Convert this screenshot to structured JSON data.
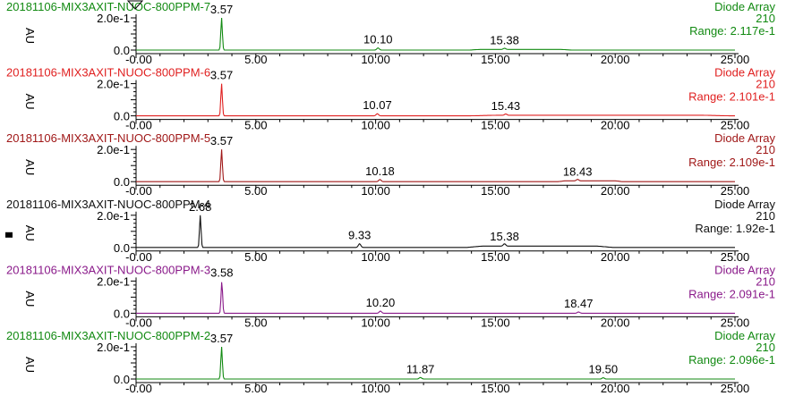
{
  "chart_data": [
    {
      "type": "line",
      "title": "20181106-MIX3AXIT-NUOC-800PPM-7",
      "detector": "Diode Array",
      "wavelength": "210",
      "range_text": "Range: 2.117e-1",
      "color": "#128a12",
      "ylabel": "AU",
      "ytick_labels": [
        "2.0e-1",
        "0.0"
      ],
      "xtick_labels": [
        "-0.00",
        "5.00",
        "10.00",
        "15.00",
        "20.00",
        "25.00"
      ],
      "xlim": [
        0,
        25
      ],
      "ylim": [
        0,
        0.2117
      ],
      "peaks": [
        {
          "x": 3.57,
          "y": 0.2117,
          "label": "3.57"
        },
        {
          "x": 10.1,
          "y": 0.014,
          "label": "10.10"
        },
        {
          "x": 15.38,
          "y": 0.008,
          "label": "15.38"
        }
      ],
      "baseline_humps": [
        [
          13.9,
          18.2,
          0.004
        ]
      ]
    },
    {
      "type": "line",
      "title": "20181106-MIX3AXIT-NUOC-800PPM-6",
      "detector": "Diode Array",
      "wavelength": "210",
      "range_text": "Range: 2.101e-1",
      "color": "#e02020",
      "ylabel": "AU",
      "ytick_labels": [
        "2.0e-1",
        "0.0"
      ],
      "xtick_labels": [
        "-0.00",
        "5.00",
        "10.00",
        "15.00",
        "20.00",
        "25.00"
      ],
      "xlim": [
        0,
        25
      ],
      "ylim": [
        0,
        0.2101
      ],
      "peaks": [
        {
          "x": 3.57,
          "y": 0.2101,
          "label": "3.57"
        },
        {
          "x": 10.07,
          "y": 0.014,
          "label": "10.07"
        },
        {
          "x": 15.43,
          "y": 0.008,
          "label": "15.43"
        }
      ],
      "baseline_humps": [
        [
          13.9,
          24.8,
          0.004
        ]
      ]
    },
    {
      "type": "line",
      "title": "20181106-MIX3AXIT-NUOC-800PPM-5",
      "detector": "Diode Array",
      "wavelength": "210",
      "range_text": "Range: 2.109e-1",
      "color": "#a01818",
      "ylabel": "AU",
      "ytick_labels": [
        "2.0e-1",
        "0.0"
      ],
      "xtick_labels": [
        "-0.00",
        "5.00",
        "10.00",
        "15.00",
        "20.00",
        "25.00"
      ],
      "xlim": [
        0,
        25
      ],
      "ylim": [
        0,
        0.2109
      ],
      "peaks": [
        {
          "x": 3.57,
          "y": 0.2109,
          "label": "3.57"
        },
        {
          "x": 10.18,
          "y": 0.014,
          "label": "10.18"
        },
        {
          "x": 18.43,
          "y": 0.01,
          "label": "18.43"
        }
      ],
      "baseline_humps": [
        [
          17.6,
          20.3,
          0.005
        ]
      ]
    },
    {
      "type": "line",
      "title": "20181106-MIX3AXIT-NUOC-800PPM-4",
      "detector": "Diode Array",
      "wavelength": "210",
      "range_text": "Range: 1.92e-1",
      "color": "#111111",
      "ylabel": "AU",
      "ytick_labels": [
        "2.0e-1",
        "0.0"
      ],
      "xtick_labels": [
        "-0.00",
        "5.00",
        "10.00",
        "15.00",
        "20.00",
        "25.00"
      ],
      "xlim": [
        0,
        25
      ],
      "ylim": [
        0,
        0.192
      ],
      "peaks": [
        {
          "x": 2.68,
          "y": 0.192,
          "label": "2.68"
        },
        {
          "x": 9.33,
          "y": 0.022,
          "label": "9.33"
        },
        {
          "x": 15.38,
          "y": 0.014,
          "label": "15.38"
        }
      ],
      "baseline_humps": [
        [
          13.8,
          19.9,
          0.008
        ]
      ]
    },
    {
      "type": "line",
      "title": "20181106-MIX3AXIT-NUOC-800PPM-3",
      "detector": "Diode Array",
      "wavelength": "210",
      "range_text": "Range: 2.091e-1",
      "color": "#8a1a8a",
      "ylabel": "AU",
      "ytick_labels": [
        "2.0e-1",
        "0.0"
      ],
      "xtick_labels": [
        "-0.00",
        "5.00",
        "10.00",
        "15.00",
        "20.00",
        "25.00"
      ],
      "xlim": [
        0,
        25
      ],
      "ylim": [
        0,
        0.2091
      ],
      "peaks": [
        {
          "x": 3.58,
          "y": 0.2091,
          "label": "3.58"
        },
        {
          "x": 10.2,
          "y": 0.014,
          "label": "10.20"
        },
        {
          "x": 18.47,
          "y": 0.008,
          "label": "18.47"
        }
      ],
      "baseline_humps": []
    },
    {
      "type": "line",
      "title": "20181106-MIX3AXIT-NUOC-800PPM-2",
      "detector": "Diode Array",
      "wavelength": "210",
      "range_text": "Range: 2.096e-1",
      "color": "#128a12",
      "ylabel": "AU",
      "ytick_labels": [
        "2.0e-1",
        "0.0"
      ],
      "xtick_labels": [
        "-0.00",
        "5.00",
        "10.00",
        "15.00",
        "20.00",
        "25.00"
      ],
      "xlim": [
        0,
        25
      ],
      "ylim": [
        0,
        0.2096
      ],
      "peaks": [
        {
          "x": 3.57,
          "y": 0.2096,
          "label": "3.57"
        },
        {
          "x": 11.87,
          "y": 0.01,
          "label": "11.87"
        },
        {
          "x": 19.5,
          "y": 0.008,
          "label": "19.50"
        }
      ],
      "baseline_humps": []
    }
  ]
}
